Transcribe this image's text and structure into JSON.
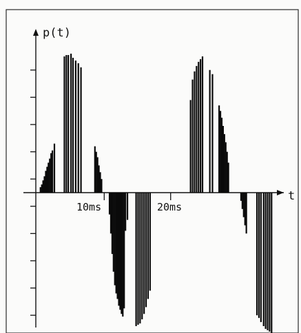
{
  "chart_data": {
    "type": "bar",
    "ylabel": "p(t)",
    "xlabel": "t",
    "x_tick_labels": [
      "10ms",
      "20ms"
    ],
    "x_ticks_ms": [
      10,
      20
    ],
    "xlim_ms": [
      -0.3,
      36.0
    ],
    "ylim": [
      -1.0,
      1.0
    ],
    "y_major_ticks": [
      -0.9,
      -0.7,
      -0.5,
      -0.3,
      -0.1,
      0.1,
      0.3,
      0.5,
      0.7,
      0.9
    ],
    "grid": false,
    "legend": "none",
    "series": [
      {
        "values": [
          {
            "x": 0.4,
            "y": 0.04
          },
          {
            "x": 0.6,
            "y": 0.06
          },
          {
            "x": 0.8,
            "y": 0.09
          },
          {
            "x": 1.0,
            "y": 0.12
          },
          {
            "x": 1.2,
            "y": 0.16
          },
          {
            "x": 1.4,
            "y": 0.19
          },
          {
            "x": 1.6,
            "y": 0.22
          },
          {
            "x": 1.8,
            "y": 0.25
          },
          {
            "x": 2.0,
            "y": 0.29
          },
          {
            "x": 2.2,
            "y": 0.31
          },
          {
            "x": 2.5,
            "y": 0.36
          },
          {
            "x": 4.0,
            "y": 1.0
          },
          {
            "x": 4.3,
            "y": 1.01
          },
          {
            "x": 4.6,
            "y": 1.01
          },
          {
            "x": 5.0,
            "y": 1.02
          },
          {
            "x": 5.3,
            "y": 0.99
          },
          {
            "x": 5.7,
            "y": 0.97
          },
          {
            "x": 6.1,
            "y": 0.95
          },
          {
            "x": 6.5,
            "y": 0.92
          },
          {
            "x": 8.6,
            "y": 0.34
          },
          {
            "x": 8.8,
            "y": 0.3
          },
          {
            "x": 9.0,
            "y": 0.26
          },
          {
            "x": 9.2,
            "y": 0.2
          },
          {
            "x": 9.4,
            "y": 0.15
          },
          {
            "x": 9.6,
            "y": 0.1
          },
          {
            "x": 10.8,
            "y": -0.16
          },
          {
            "x": 11.0,
            "y": -0.3
          },
          {
            "x": 11.2,
            "y": -0.45
          },
          {
            "x": 11.4,
            "y": -0.58
          },
          {
            "x": 11.6,
            "y": -0.68
          },
          {
            "x": 11.8,
            "y": -0.74
          },
          {
            "x": 12.0,
            "y": -0.78
          },
          {
            "x": 12.2,
            "y": -0.83
          },
          {
            "x": 12.4,
            "y": -0.86
          },
          {
            "x": 12.6,
            "y": -0.89
          },
          {
            "x": 12.8,
            "y": -0.91
          },
          {
            "x": 13.0,
            "y": -0.85
          },
          {
            "x": 13.2,
            "y": -0.28
          },
          {
            "x": 13.5,
            "y": -0.2
          },
          {
            "x": 14.8,
            "y": -0.98
          },
          {
            "x": 15.1,
            "y": -0.97
          },
          {
            "x": 15.4,
            "y": -0.96
          },
          {
            "x": 15.7,
            "y": -0.93
          },
          {
            "x": 16.0,
            "y": -0.89
          },
          {
            "x": 16.3,
            "y": -0.84
          },
          {
            "x": 16.6,
            "y": -0.78
          },
          {
            "x": 16.9,
            "y": -0.72
          },
          {
            "x": 23.0,
            "y": 0.68
          },
          {
            "x": 23.3,
            "y": 0.83
          },
          {
            "x": 23.6,
            "y": 0.89
          },
          {
            "x": 23.9,
            "y": 0.93
          },
          {
            "x": 24.2,
            "y": 0.96
          },
          {
            "x": 24.5,
            "y": 0.98
          },
          {
            "x": 24.8,
            "y": 1.0
          },
          {
            "x": 25.9,
            "y": 0.9
          },
          {
            "x": 26.3,
            "y": 0.87
          },
          {
            "x": 27.3,
            "y": 0.64
          },
          {
            "x": 27.5,
            "y": 0.6
          },
          {
            "x": 27.7,
            "y": 0.55
          },
          {
            "x": 27.9,
            "y": 0.49
          },
          {
            "x": 28.1,
            "y": 0.43
          },
          {
            "x": 28.3,
            "y": 0.37
          },
          {
            "x": 28.5,
            "y": 0.3
          },
          {
            "x": 28.7,
            "y": 0.22
          },
          {
            "x": 30.6,
            "y": -0.06
          },
          {
            "x": 30.8,
            "y": -0.12
          },
          {
            "x": 31.0,
            "y": -0.18
          },
          {
            "x": 31.2,
            "y": -0.24
          },
          {
            "x": 31.4,
            "y": -0.3
          },
          {
            "x": 33.0,
            "y": -0.9
          },
          {
            "x": 33.3,
            "y": -0.92
          },
          {
            "x": 33.6,
            "y": -0.95
          },
          {
            "x": 34.0,
            "y": -0.98
          },
          {
            "x": 34.3,
            "y": -1.0
          },
          {
            "x": 34.6,
            "y": -1.01
          },
          {
            "x": 34.9,
            "y": -1.02
          },
          {
            "x": 35.2,
            "y": -1.03
          }
        ]
      }
    ]
  }
}
